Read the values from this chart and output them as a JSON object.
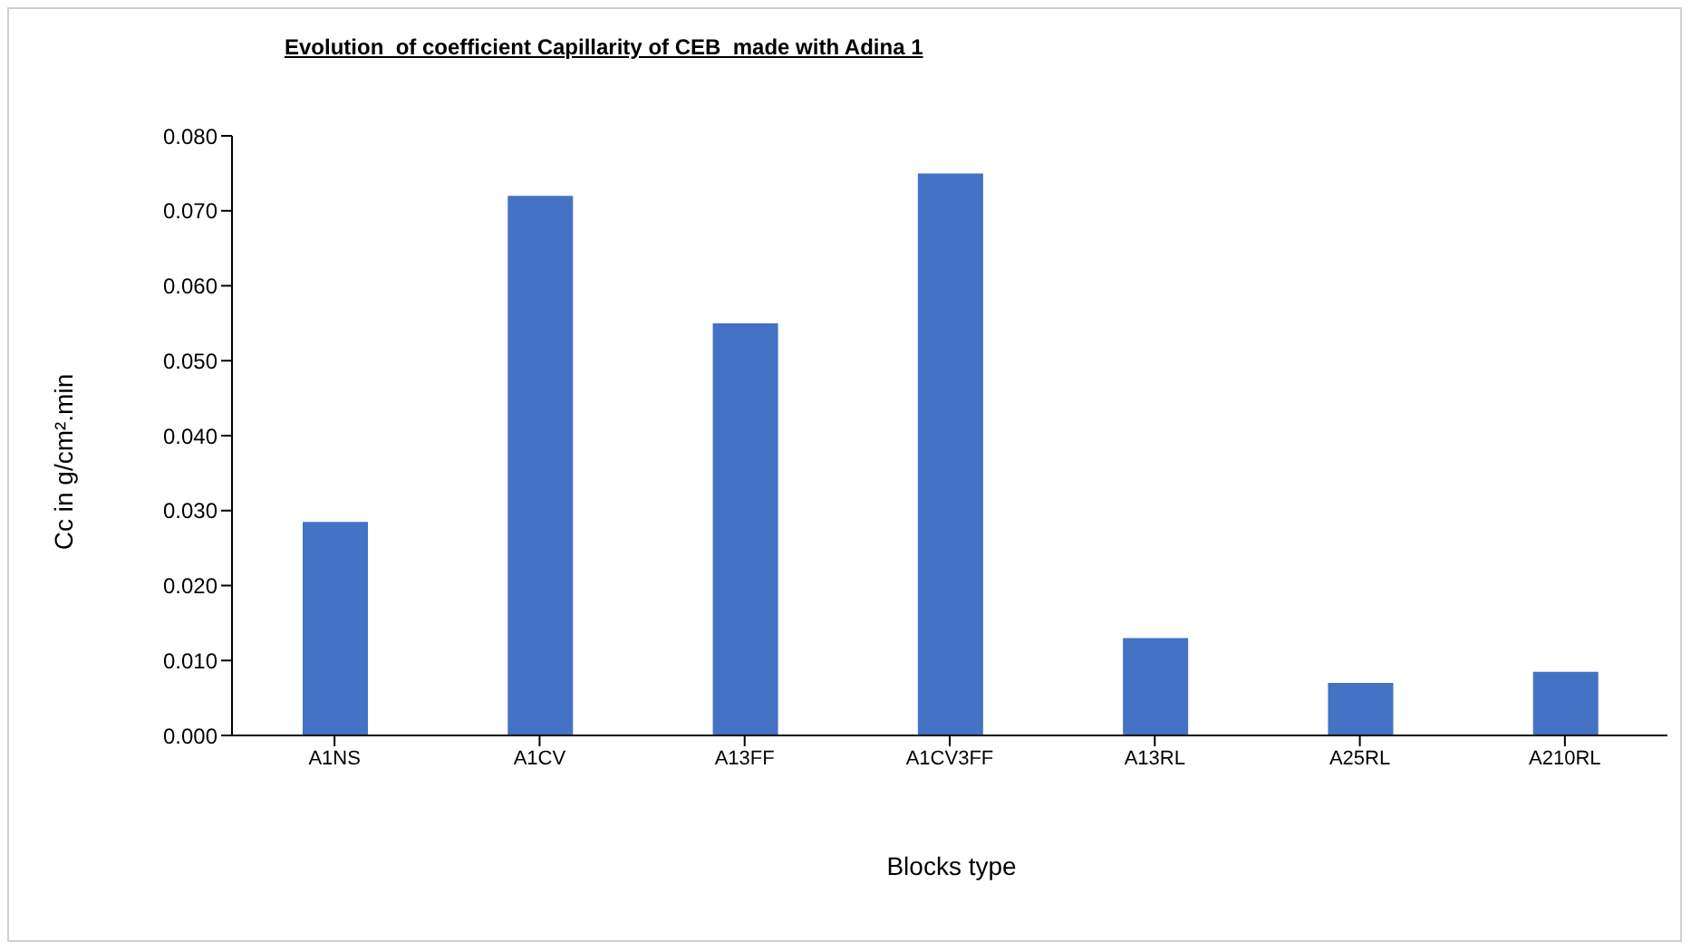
{
  "chart_data": {
    "type": "bar",
    "title": "Evolution  of coefficient Capillarity of CEB  made with Adina 1",
    "xlabel": "Blocks type",
    "ylabel": "Cc in g/cm².min",
    "categories": [
      "A1NS",
      "A1CV",
      "A13FF",
      "A1CV3FF",
      "A13RL",
      "A25RL",
      "A210RL"
    ],
    "values": [
      0.0285,
      0.072,
      0.055,
      0.075,
      0.013,
      0.007,
      0.0085
    ],
    "color": "#4472c4",
    "ylim": [
      0,
      0.08
    ],
    "yticks": [
      {
        "value": 0,
        "label": "0.000"
      },
      {
        "value": 0.01,
        "label": "0.010"
      },
      {
        "value": 0.02,
        "label": "0.020"
      },
      {
        "value": 0.03,
        "label": "0.030"
      },
      {
        "value": 0.04,
        "label": "0.040"
      },
      {
        "value": 0.05,
        "label": "0.050"
      },
      {
        "value": 0.06,
        "label": "0.060"
      },
      {
        "value": 0.07,
        "label": "0.070"
      },
      {
        "value": 0.08,
        "label": "0.080"
      }
    ],
    "grid": false,
    "legend": false
  }
}
